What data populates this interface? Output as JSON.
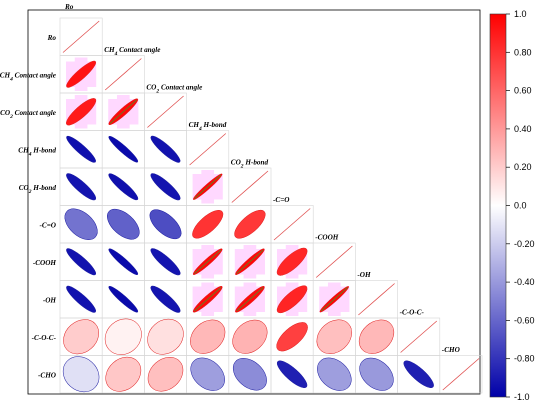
{
  "chart_data": {
    "type": "heatmap",
    "subtype": "correlation-ellipse-lower-triangle",
    "variables": [
      "Ro",
      "CH4 Contact angle",
      "CO2 Contact angle",
      "CH4 H-bond",
      "CO2 H-bond",
      "-C=O",
      "-COOH",
      "-OH",
      "-C-O-C-",
      "-CHO"
    ],
    "labels": [
      {
        "main": "Ro",
        "sub": ""
      },
      {
        "main": "CH",
        "sub": "4",
        "rest": " Contact angle"
      },
      {
        "main": "CO",
        "sub": "2",
        "rest": " Contact angle"
      },
      {
        "main": "CH",
        "sub": "4",
        "rest": " H-bond"
      },
      {
        "main": "CO",
        "sub": "2",
        "rest": " H-bond"
      },
      {
        "main": "-C=O",
        "sub": ""
      },
      {
        "main": "-COOH",
        "sub": ""
      },
      {
        "main": "-OH",
        "sub": ""
      },
      {
        "main": "-C-O-C-",
        "sub": ""
      },
      {
        "main": "-CHO",
        "sub": ""
      }
    ],
    "matrix": [
      [
        1.0,
        0.93,
        0.9,
        -0.94,
        -0.92,
        -0.55,
        -0.93,
        -0.93,
        0.2,
        -0.12
      ],
      [
        0.93,
        1.0,
        0.96,
        -0.96,
        -0.94,
        -0.62,
        -0.96,
        -0.96,
        0.05,
        0.22
      ],
      [
        0.9,
        0.96,
        1.0,
        -0.93,
        -0.92,
        -0.7,
        -0.92,
        -0.92,
        0.12,
        0.25
      ],
      [
        -0.94,
        -0.96,
        -0.93,
        1.0,
        0.98,
        0.8,
        0.97,
        0.96,
        0.28,
        -0.38
      ],
      [
        -0.92,
        -0.94,
        -0.92,
        0.98,
        1.0,
        0.78,
        0.97,
        0.96,
        0.3,
        -0.45
      ],
      [
        -0.55,
        -0.62,
        -0.7,
        0.8,
        0.78,
        1.0,
        0.85,
        0.86,
        0.75,
        -0.88
      ],
      [
        -0.93,
        -0.96,
        -0.92,
        0.97,
        0.97,
        0.85,
        1.0,
        0.98,
        0.25,
        -0.38
      ],
      [
        -0.93,
        -0.96,
        -0.92,
        0.96,
        0.96,
        0.86,
        0.98,
        1.0,
        0.28,
        -0.4
      ],
      [
        0.2,
        0.05,
        0.12,
        0.28,
        0.3,
        0.75,
        0.25,
        0.28,
        1.0,
        -0.88
      ],
      [
        -0.12,
        0.22,
        0.25,
        -0.38,
        -0.45,
        -0.88,
        -0.38,
        -0.4,
        -0.88,
        1.0
      ]
    ],
    "colorbar": {
      "range": [
        -1.0,
        1.0
      ],
      "ticks": [
        "1.0",
        "0.80",
        "0.60",
        "0.40",
        "0.20",
        "0.0",
        "-0.20",
        "-0.40",
        "-0.60",
        "-0.80",
        "-1.0"
      ],
      "colors": {
        "negative": "#0000a8",
        "zero": "#ffffff",
        "positive": "#ff0000"
      },
      "placement": "right"
    },
    "grid": true,
    "cell_highlight_color": "#ffd8ff"
  }
}
